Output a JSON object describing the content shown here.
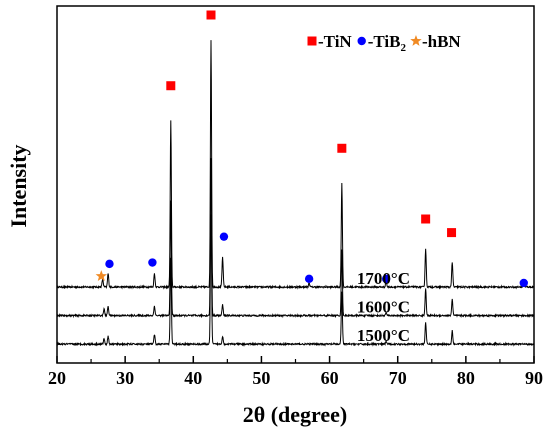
{
  "chart_data": {
    "type": "line",
    "xlabel": "2θ (degree)",
    "ylabel": "Intensity",
    "xlim": [
      20,
      90
    ],
    "x_ticks": [
      20,
      30,
      40,
      50,
      60,
      70,
      80,
      90
    ],
    "y_ticks_shown": false,
    "grid": false,
    "legend_position": "top-right",
    "legend": [
      {
        "marker": "square",
        "color": "#ff0000",
        "label": "-TiN"
      },
      {
        "marker": "circle",
        "color": "#0000ff",
        "label": "-TiB",
        "sub": "2"
      },
      {
        "marker": "star",
        "color": "#f08a24",
        "label": "-hBN"
      }
    ],
    "series": [
      {
        "name": "1700°C",
        "baseline": 0,
        "peaks": [
          {
            "x": 26.7,
            "h": 0.03
          },
          {
            "x": 27.5,
            "h": 0.05
          },
          {
            "x": 34.3,
            "h": 0.05
          },
          {
            "x": 36.7,
            "h": 0.61
          },
          {
            "x": 42.6,
            "h": 0.91
          },
          {
            "x": 44.3,
            "h": 0.11
          },
          {
            "x": 57.0,
            "h": 0.015
          },
          {
            "x": 61.8,
            "h": 0.38
          },
          {
            "x": 68.3,
            "h": 0.02
          },
          {
            "x": 74.1,
            "h": 0.14
          },
          {
            "x": 78.0,
            "h": 0.09
          },
          {
            "x": 88.5,
            "h": 0.01
          }
        ]
      },
      {
        "name": "1600°C",
        "baseline": -0.105,
        "peaks": [
          {
            "x": 26.9,
            "h": 0.025
          },
          {
            "x": 27.5,
            "h": 0.035
          },
          {
            "x": 34.3,
            "h": 0.035
          },
          {
            "x": 36.7,
            "h": 0.42
          },
          {
            "x": 42.6,
            "h": 0.58
          },
          {
            "x": 44.3,
            "h": 0.04
          },
          {
            "x": 61.8,
            "h": 0.24
          },
          {
            "x": 68.3,
            "h": 0.01
          },
          {
            "x": 74.1,
            "h": 0.1
          },
          {
            "x": 78.0,
            "h": 0.06
          }
        ]
      },
      {
        "name": "1500°C",
        "baseline": -0.21,
        "peaks": [
          {
            "x": 26.9,
            "h": 0.02
          },
          {
            "x": 27.5,
            "h": 0.03
          },
          {
            "x": 34.3,
            "h": 0.035
          },
          {
            "x": 36.7,
            "h": 0.32
          },
          {
            "x": 42.6,
            "h": 0.48
          },
          {
            "x": 44.3,
            "h": 0.03
          },
          {
            "x": 61.8,
            "h": 0.19
          },
          {
            "x": 68.3,
            "h": 0.01
          },
          {
            "x": 74.1,
            "h": 0.08
          },
          {
            "x": 78.0,
            "h": 0.05
          }
        ]
      }
    ],
    "phase_markers": [
      {
        "phase": "TiN",
        "x": 36.7,
        "y": 0.74
      },
      {
        "phase": "TiN",
        "x": 42.6,
        "y": 1.0
      },
      {
        "phase": "TiN",
        "x": 61.8,
        "y": 0.51
      },
      {
        "phase": "TiN",
        "x": 74.1,
        "y": 0.25
      },
      {
        "phase": "TiN",
        "x": 77.9,
        "y": 0.2
      },
      {
        "phase": "TiB2",
        "x": 27.7,
        "y": 0.085
      },
      {
        "phase": "TiB2",
        "x": 34.0,
        "y": 0.09
      },
      {
        "phase": "TiB2",
        "x": 44.5,
        "y": 0.185
      },
      {
        "phase": "TiB2",
        "x": 57.0,
        "y": 0.03
      },
      {
        "phase": "TiB2",
        "x": 68.3,
        "y": 0.03
      },
      {
        "phase": "TiB2",
        "x": 88.5,
        "y": 0.015
      },
      {
        "phase": "hBN",
        "x": 26.5,
        "y": 0.04
      }
    ],
    "marker_colors": {
      "TiN": "#ff0000",
      "TiB2": "#0000ff",
      "hBN": "#f08a24"
    }
  }
}
